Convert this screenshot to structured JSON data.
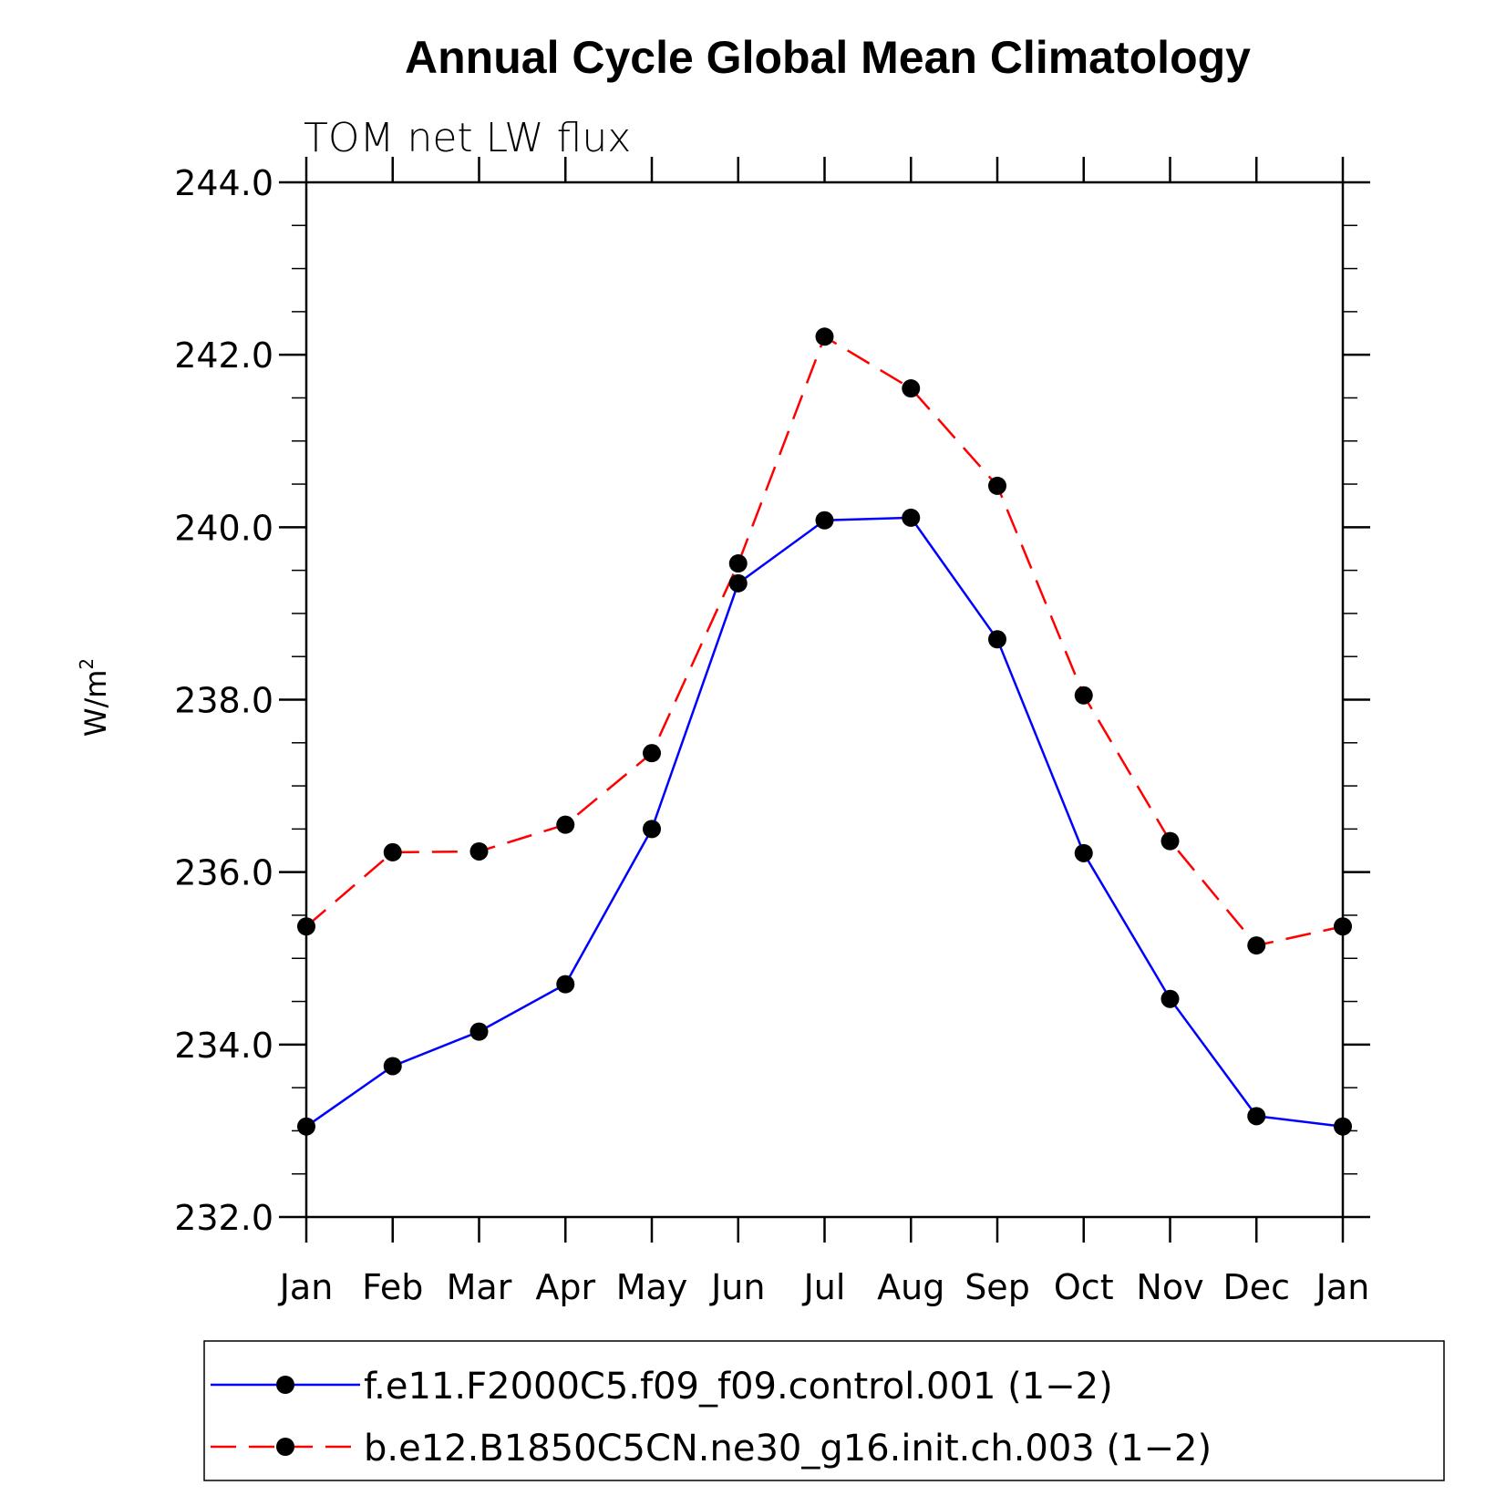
{
  "chart_data": {
    "type": "line",
    "title": "Annual Cycle Global Mean Climatology",
    "subtitle": "TOM net LW flux",
    "ylabel": "W/m",
    "ylabel_superscript": "2",
    "xlabel": "",
    "ylim": [
      232.0,
      244.0
    ],
    "yticks": [
      "232.0",
      "234.0",
      "236.0",
      "238.0",
      "240.0",
      "242.0",
      "244.0"
    ],
    "categories": [
      "Jan",
      "Feb",
      "Mar",
      "Apr",
      "May",
      "Jun",
      "Jul",
      "Aug",
      "Sep",
      "Oct",
      "Nov",
      "Dec",
      "Jan"
    ],
    "series": [
      {
        "name": "f.e11.F2000C5.f09_f09.control.001 (1−2)",
        "color": "#0000ff",
        "dash": "solid",
        "values": [
          233.05,
          233.75,
          234.15,
          234.7,
          236.5,
          239.35,
          240.08,
          240.11,
          238.7,
          236.22,
          234.53,
          233.17,
          233.05
        ]
      },
      {
        "name": "b.e12.B1850C5CN.ne30_g16.init.ch.003 (1−2)",
        "color": "#ff0000",
        "dash": "dashed",
        "values": [
          235.37,
          236.23,
          236.24,
          236.55,
          237.38,
          239.58,
          242.21,
          241.61,
          240.48,
          238.05,
          236.36,
          235.15,
          235.37
        ]
      }
    ]
  }
}
